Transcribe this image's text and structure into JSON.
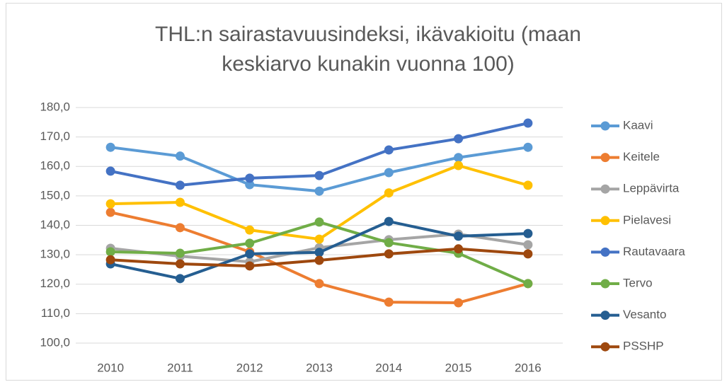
{
  "chart_data": {
    "type": "line",
    "title": "THL:n sairastavuusindeksi, ikävakioitu (maan keskiarvo kunakin vuonna 100)",
    "categories": [
      "2010",
      "2011",
      "2012",
      "2013",
      "2014",
      "2015",
      "2016"
    ],
    "series": [
      {
        "name": "Kaavi",
        "color": "#5b9bd5",
        "values": [
          166.5,
          163.5,
          153.8,
          151.6,
          157.9,
          163.0,
          166.5
        ]
      },
      {
        "name": "Keitele",
        "color": "#ed7d31",
        "values": [
          144.4,
          139.2,
          131.0,
          120.2,
          113.9,
          113.7,
          120.2
        ]
      },
      {
        "name": "Leppävirta",
        "color": "#a5a5a5",
        "values": [
          132.2,
          129.5,
          127.6,
          132.4,
          135.1,
          137.0,
          133.4
        ]
      },
      {
        "name": "Pielavesi",
        "color": "#ffc000",
        "values": [
          147.3,
          147.8,
          138.4,
          135.3,
          151.0,
          160.3,
          153.6
        ]
      },
      {
        "name": "Rautavaara",
        "color": "#4472c4",
        "values": [
          158.4,
          153.6,
          156.0,
          156.9,
          165.6,
          169.4,
          174.7
        ]
      },
      {
        "name": "Tervo",
        "color": "#70ad47",
        "values": [
          131.0,
          130.5,
          133.9,
          141.1,
          134.1,
          130.5,
          120.2
        ]
      },
      {
        "name": "Vesanto",
        "color": "#255e91",
        "values": [
          126.9,
          121.9,
          130.3,
          130.8,
          141.3,
          136.3,
          137.2
        ]
      },
      {
        "name": "PSSHP",
        "color": "#9e480e",
        "values": [
          128.3,
          126.9,
          126.2,
          128.1,
          130.3,
          132.0,
          130.3
        ]
      }
    ],
    "ylim": [
      100,
      180
    ],
    "yticks": [
      {
        "value": 100,
        "label": "100,0"
      },
      {
        "value": 110,
        "label": "110,0"
      },
      {
        "value": 120,
        "label": "120,0"
      },
      {
        "value": 130,
        "label": "130,0"
      },
      {
        "value": 140,
        "label": "140,0"
      },
      {
        "value": 150,
        "label": "150,0"
      },
      {
        "value": 160,
        "label": "160,0"
      },
      {
        "value": 170,
        "label": "170,0"
      },
      {
        "value": 180,
        "label": "180,0"
      }
    ],
    "grid": true,
    "legend": "right"
  }
}
